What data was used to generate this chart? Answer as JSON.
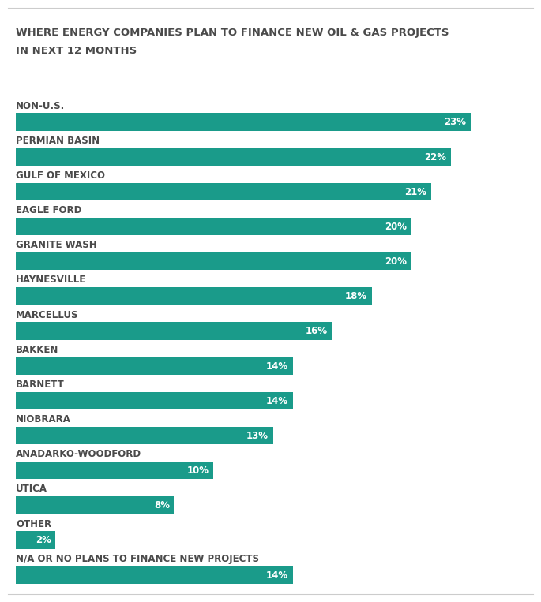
{
  "title_line1": "WHERE ENERGY COMPANIES PLAN TO FINANCE NEW OIL & GAS PROJECTS",
  "title_line2": "IN NEXT 12 MONTHS",
  "categories": [
    "NON-U.S.",
    "PERMIAN BASIN",
    "GULF OF MEXICO",
    "EAGLE FORD",
    "GRANITE WASH",
    "HAYNESVILLE",
    "MARCELLUS",
    "BAKKEN",
    "BARNETT",
    "NIOBRARA",
    "ANADARKO-WOODFORD",
    "UTICA",
    "OTHER",
    "N/A OR NO PLANS TO FINANCE NEW PROJECTS"
  ],
  "values": [
    23,
    22,
    21,
    20,
    20,
    18,
    16,
    14,
    14,
    13,
    10,
    8,
    2,
    14
  ],
  "bar_color": "#1a9b8a",
  "label_color": "#ffffff",
  "title_color": "#4a4a4a",
  "category_color": "#4a4a4a",
  "background_color": "#ffffff",
  "title_fontsize": 9.5,
  "category_fontsize": 8.5,
  "value_fontsize": 8.5,
  "bar_height": 0.5,
  "xlim": [
    0,
    25.5
  ],
  "top_line_color": "#cccccc"
}
